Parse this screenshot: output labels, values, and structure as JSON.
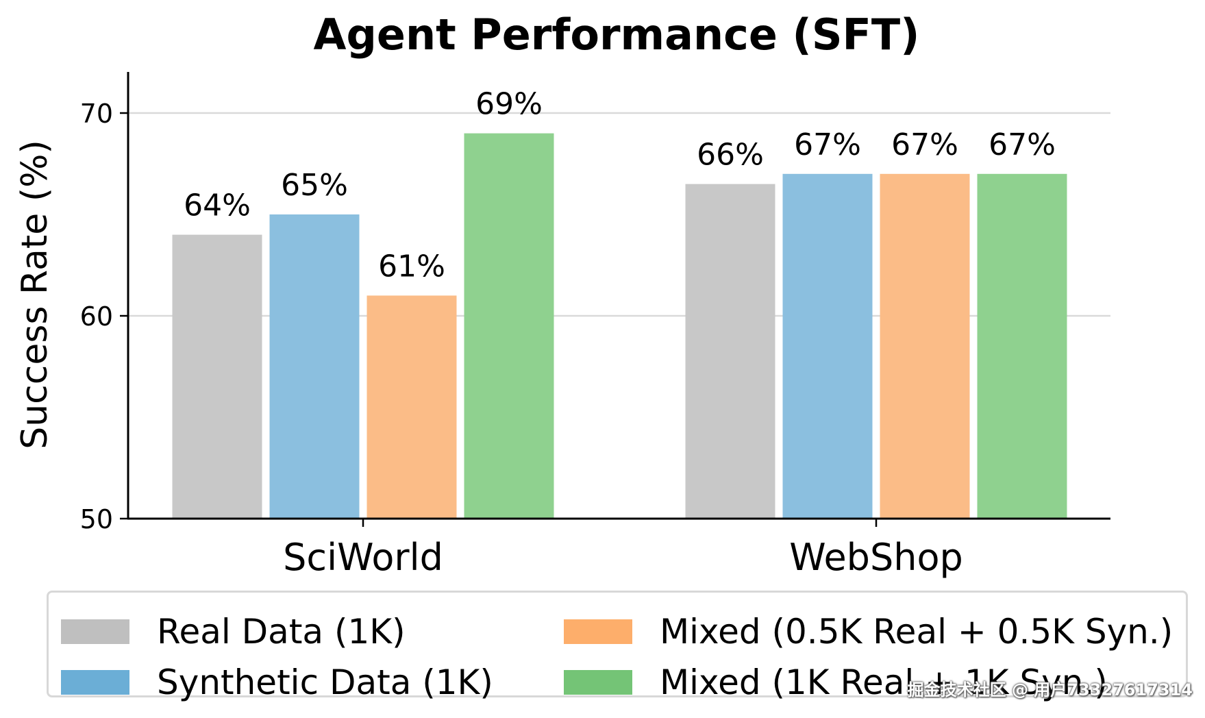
{
  "chart_data": {
    "type": "bar",
    "title": "Agent Performance (SFT)",
    "xlabel": "",
    "ylabel": "Success Rate (%)",
    "ylim": [
      50,
      72
    ],
    "yticks": [
      50,
      60,
      70
    ],
    "grid": "horizontal",
    "categories": [
      "SciWorld",
      "WebShop"
    ],
    "series": [
      {
        "name": "Real Data (1K)",
        "values": [
          64,
          66.5
        ],
        "labels": [
          "64%",
          "66%"
        ],
        "color": "#c8c8c8",
        "legend_color": "#bfbfbf"
      },
      {
        "name": "Synthetic Data (1K)",
        "values": [
          65,
          67
        ],
        "labels": [
          "65%",
          "67%"
        ],
        "color": "#8bbfdf",
        "legend_color": "#6baed6"
      },
      {
        "name": "Mixed (0.5K Real + 0.5K Syn.)",
        "values": [
          61,
          67
        ],
        "labels": [
          "61%",
          "67%"
        ],
        "color": "#fbbc87",
        "legend_color": "#fdae6b"
      },
      {
        "name": "Mixed (1K Real + 1K Syn.)",
        "values": [
          69,
          67
        ],
        "labels": [
          "69%",
          "67%"
        ],
        "color": "#8fd18f",
        "legend_color": "#74c476"
      }
    ],
    "legend_position": "bottom"
  },
  "watermark": "掘金技术社区 @ 用户73327617314"
}
